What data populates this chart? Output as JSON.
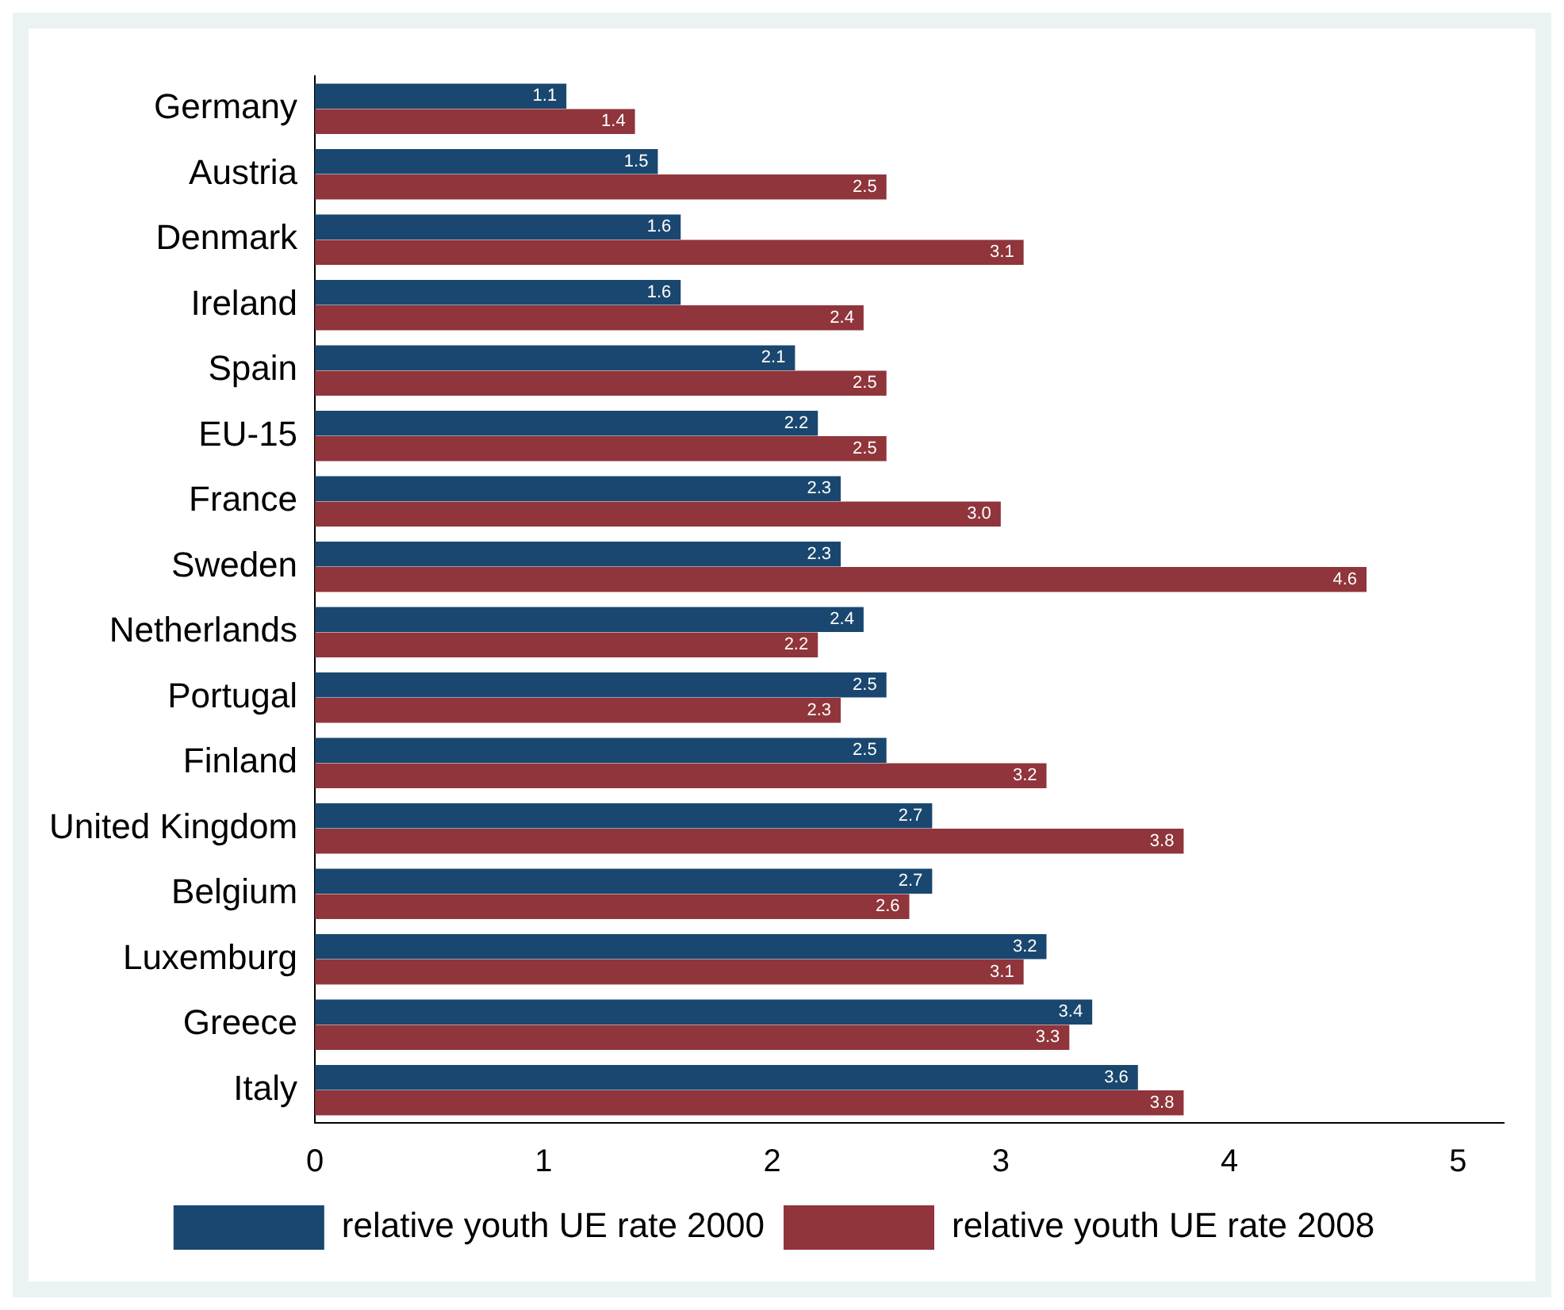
{
  "chart_data": {
    "type": "bar",
    "orientation": "horizontal",
    "categories": [
      "Germany",
      "Austria",
      "Denmark",
      "Ireland",
      "Spain",
      "EU-15",
      "France",
      "Sweden",
      "Netherlands",
      "Portugal",
      "Finland",
      "United Kingdom",
      "Belgium",
      "Luxemburg",
      "Greece",
      "Italy"
    ],
    "series": [
      {
        "name": "relative youth UE rate 2000",
        "color": "#1a476f",
        "values": [
          1.1,
          1.5,
          1.6,
          1.6,
          2.1,
          2.2,
          2.3,
          2.3,
          2.4,
          2.5,
          2.5,
          2.7,
          2.7,
          3.2,
          3.4,
          3.6
        ],
        "value_labels": [
          "1.1",
          "1.5",
          "1.6",
          "1.6",
          "2.1",
          "2.2",
          "2.3",
          "2.3",
          "2.4",
          "2.5",
          "2.5",
          "2.7",
          "2.7",
          "3.2",
          "3.4",
          "3.6"
        ]
      },
      {
        "name": "relative youth UE rate 2008",
        "color": "#90353b",
        "values": [
          1.4,
          2.5,
          3.1,
          2.4,
          2.5,
          2.5,
          3.0,
          4.6,
          2.2,
          2.3,
          3.2,
          3.8,
          2.6,
          3.1,
          3.3,
          3.8
        ],
        "value_labels": [
          "1.4",
          "2.5",
          "3.1",
          "2.4",
          "2.5",
          "2.5",
          "3.0",
          "4.6",
          "2.2",
          "2.3",
          "3.2",
          "3.8",
          "2.6",
          "3.1",
          "3.3",
          "3.8"
        ]
      }
    ],
    "xlim": [
      0,
      5.2
    ],
    "xticks": [
      0,
      1,
      2,
      3,
      4,
      5
    ],
    "grid": false,
    "legend": "bottom"
  }
}
